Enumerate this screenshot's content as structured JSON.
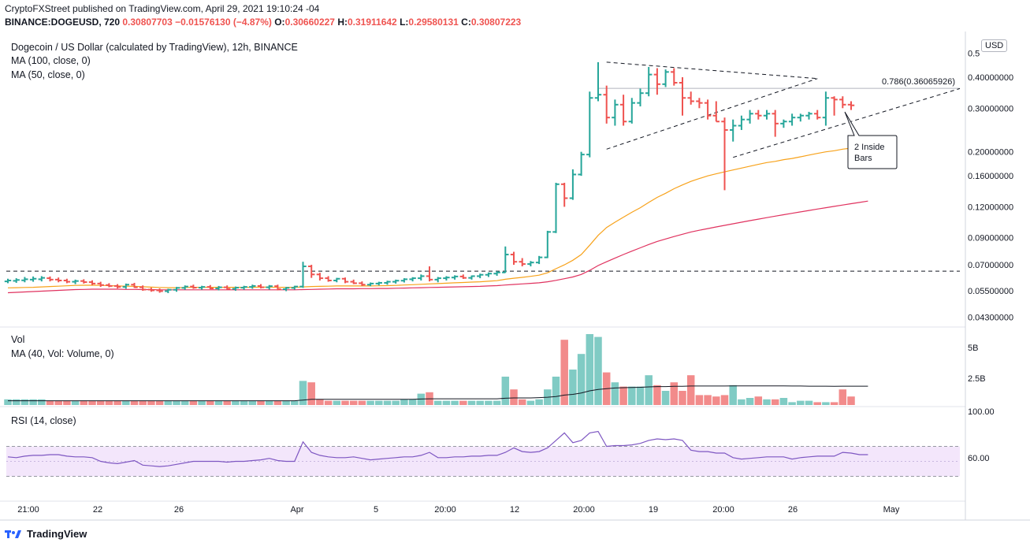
{
  "header": {
    "line1": "CryptoFXStreet published on TradingView.com, April 29, 2021 19:10:24 -04",
    "symbol": "BINANCE:DOGEUSD, 720",
    "change": "0.30807703 −0.01576130 (−4.87%)",
    "o_label": "O:",
    "o": "0.30660227",
    "h_label": "H:",
    "h": "0.31911642",
    "l_label": "L:",
    "l": "0.29580131",
    "c_label": "C:",
    "c": "0.30807223"
  },
  "legends": {
    "title": "Dogecoin / US Dollar (calculated by TradingView), 12h, BINANCE",
    "ma100": "MA (100, close, 0)",
    "ma50": "MA (50, close, 0)",
    "vol": "Vol",
    "vol_ma": "MA (40, Vol: Volume, 0)",
    "rsi": "RSI (14, close)"
  },
  "currency": "USD",
  "footer": "TradingView",
  "colors": {
    "up": "#26a69a",
    "down": "#ef5350",
    "ma50": "#f7a21b",
    "ma100": "#e0325f",
    "rsi": "#7e57c2",
    "rsi_band": "#f3e6fb"
  },
  "chart_data": {
    "type": "bar",
    "price_axis_ticks": [
      "0.5",
      "0.40000000",
      "0.30000000",
      "0.20000000",
      "0.16000000",
      "0.12000000",
      "0.09000000",
      "0.07000000",
      "0.05500000",
      "0.04300000"
    ],
    "volume_axis_ticks": [
      "5B",
      "2.5B"
    ],
    "rsi_axis_ticks": [
      "100.00",
      "60.00"
    ],
    "x_ticks": [
      "21:00",
      "22",
      "26",
      "Apr",
      "5",
      "20:00",
      "12",
      "20:00",
      "19",
      "20:00",
      "26",
      "May"
    ],
    "annotations": {
      "fib": "0.786(0.36065926)",
      "inside_bars_line1": "2 Inside",
      "inside_bars_line2": "Bars"
    },
    "horizontal_level": 0.066,
    "fib_level": 0.36066,
    "ohlc": [
      [
        0.06,
        0.0615,
        0.059,
        0.0605
      ],
      [
        0.0603,
        0.0618,
        0.0592,
        0.0608
      ],
      [
        0.0606,
        0.0625,
        0.0595,
        0.0612
      ],
      [
        0.061,
        0.0628,
        0.0598,
        0.0615
      ],
      [
        0.0612,
        0.063,
        0.06,
        0.062
      ],
      [
        0.0618,
        0.0628,
        0.06,
        0.061
      ],
      [
        0.061,
        0.0622,
        0.0595,
        0.0605
      ],
      [
        0.0605,
        0.0615,
        0.059,
        0.0598
      ],
      [
        0.0598,
        0.061,
        0.0585,
        0.0602
      ],
      [
        0.0602,
        0.0612,
        0.0588,
        0.0596
      ],
      [
        0.0596,
        0.0606,
        0.058,
        0.0588
      ],
      [
        0.0588,
        0.0598,
        0.057,
        0.058
      ],
      [
        0.058,
        0.059,
        0.0568,
        0.0575
      ],
      [
        0.0575,
        0.0585,
        0.0562,
        0.057
      ],
      [
        0.057,
        0.0588,
        0.056,
        0.0582
      ],
      [
        0.0582,
        0.0592,
        0.0565,
        0.0568
      ],
      [
        0.0568,
        0.0578,
        0.055,
        0.0556
      ],
      [
        0.0556,
        0.0566,
        0.0545,
        0.0552
      ],
      [
        0.0552,
        0.0562,
        0.054,
        0.0548
      ],
      [
        0.0548,
        0.056,
        0.0538,
        0.0555
      ],
      [
        0.0555,
        0.057,
        0.0545,
        0.0565
      ],
      [
        0.0565,
        0.0578,
        0.0555,
        0.0572
      ],
      [
        0.0572,
        0.0582,
        0.056,
        0.0566
      ],
      [
        0.0566,
        0.0576,
        0.0555,
        0.057
      ],
      [
        0.057,
        0.058,
        0.0558,
        0.0562
      ],
      [
        0.0562,
        0.0575,
        0.0552,
        0.0568
      ],
      [
        0.0568,
        0.0578,
        0.0556,
        0.056
      ],
      [
        0.056,
        0.0572,
        0.055,
        0.0566
      ],
      [
        0.0566,
        0.0576,
        0.0555,
        0.057
      ],
      [
        0.057,
        0.0582,
        0.056,
        0.0575
      ],
      [
        0.0575,
        0.0585,
        0.0562,
        0.0568
      ],
      [
        0.0568,
        0.058,
        0.0556,
        0.0574
      ],
      [
        0.0574,
        0.0582,
        0.0552,
        0.0558
      ],
      [
        0.0558,
        0.057,
        0.0548,
        0.0565
      ],
      [
        0.0565,
        0.0576,
        0.0556,
        0.0572
      ],
      [
        0.0572,
        0.072,
        0.0565,
        0.069
      ],
      [
        0.069,
        0.07,
        0.062,
        0.064
      ],
      [
        0.064,
        0.065,
        0.0605,
        0.0618
      ],
      [
        0.0618,
        0.063,
        0.0598,
        0.0605
      ],
      [
        0.0605,
        0.062,
        0.0595,
        0.0615
      ],
      [
        0.0615,
        0.0622,
        0.059,
        0.0598
      ],
      [
        0.0598,
        0.061,
        0.0585,
        0.059
      ],
      [
        0.059,
        0.06,
        0.0575,
        0.0582
      ],
      [
        0.0582,
        0.0594,
        0.0574,
        0.0588
      ],
      [
        0.0588,
        0.0598,
        0.0578,
        0.0592
      ],
      [
        0.0592,
        0.0604,
        0.0582,
        0.0598
      ],
      [
        0.0598,
        0.061,
        0.0588,
        0.0604
      ],
      [
        0.0604,
        0.0618,
        0.0594,
        0.0612
      ],
      [
        0.0612,
        0.0624,
        0.06,
        0.0618
      ],
      [
        0.0618,
        0.064,
        0.0605,
        0.063
      ],
      [
        0.063,
        0.069,
        0.06,
        0.061
      ],
      [
        0.061,
        0.0625,
        0.0595,
        0.0618
      ],
      [
        0.0618,
        0.063,
        0.0605,
        0.0622
      ],
      [
        0.0622,
        0.0635,
        0.061,
        0.0628
      ],
      [
        0.0628,
        0.064,
        0.0614,
        0.062
      ],
      [
        0.062,
        0.0634,
        0.061,
        0.063
      ],
      [
        0.063,
        0.0645,
        0.0618,
        0.0638
      ],
      [
        0.0638,
        0.0652,
        0.0625,
        0.0645
      ],
      [
        0.0645,
        0.066,
        0.0632,
        0.0652
      ],
      [
        0.0652,
        0.083,
        0.065,
        0.077
      ],
      [
        0.077,
        0.079,
        0.07,
        0.072
      ],
      [
        0.072,
        0.0745,
        0.069,
        0.0705
      ],
      [
        0.0705,
        0.0725,
        0.069,
        0.0715
      ],
      [
        0.0715,
        0.076,
        0.0705,
        0.075
      ],
      [
        0.075,
        0.096,
        0.0745,
        0.095
      ],
      [
        0.095,
        0.15,
        0.094,
        0.148
      ],
      [
        0.148,
        0.15,
        0.12,
        0.13
      ],
      [
        0.13,
        0.17,
        0.128,
        0.162
      ],
      [
        0.162,
        0.2,
        0.16,
        0.195
      ],
      [
        0.195,
        0.35,
        0.19,
        0.33
      ],
      [
        0.33,
        0.46,
        0.32,
        0.34
      ],
      [
        0.34,
        0.37,
        0.26,
        0.275
      ],
      [
        0.275,
        0.325,
        0.255,
        0.31
      ],
      [
        0.31,
        0.34,
        0.255,
        0.265
      ],
      [
        0.265,
        0.33,
        0.26,
        0.315
      ],
      [
        0.315,
        0.36,
        0.305,
        0.345
      ],
      [
        0.345,
        0.44,
        0.335,
        0.41
      ],
      [
        0.41,
        0.435,
        0.34,
        0.375
      ],
      [
        0.375,
        0.43,
        0.365,
        0.42
      ],
      [
        0.42,
        0.435,
        0.37,
        0.38
      ],
      [
        0.38,
        0.4,
        0.28,
        0.33
      ],
      [
        0.33,
        0.35,
        0.31,
        0.32
      ],
      [
        0.32,
        0.33,
        0.3,
        0.315
      ],
      [
        0.315,
        0.325,
        0.27,
        0.28
      ],
      [
        0.28,
        0.32,
        0.265,
        0.265
      ],
      [
        0.265,
        0.275,
        0.14,
        0.245
      ],
      [
        0.245,
        0.27,
        0.22,
        0.255
      ],
      [
        0.255,
        0.28,
        0.245,
        0.27
      ],
      [
        0.27,
        0.295,
        0.26,
        0.285
      ],
      [
        0.285,
        0.295,
        0.27,
        0.28
      ],
      [
        0.28,
        0.295,
        0.27,
        0.285
      ],
      [
        0.285,
        0.295,
        0.23,
        0.26
      ],
      [
        0.26,
        0.27,
        0.25,
        0.265
      ],
      [
        0.265,
        0.285,
        0.255,
        0.275
      ],
      [
        0.275,
        0.285,
        0.265,
        0.28
      ],
      [
        0.28,
        0.29,
        0.27,
        0.285
      ],
      [
        0.285,
        0.295,
        0.27,
        0.275
      ],
      [
        0.275,
        0.35,
        0.255,
        0.33
      ],
      [
        0.33,
        0.335,
        0.28,
        0.325
      ],
      [
        0.325,
        0.335,
        0.3,
        0.31
      ],
      [
        0.31,
        0.32,
        0.295,
        0.308
      ]
    ],
    "ma50": [
      0.0565,
      0.0566,
      0.0567,
      0.0568,
      0.057,
      0.0572,
      0.0574,
      0.0576,
      0.0578,
      0.0579,
      0.0579,
      0.0578,
      0.0577,
      0.0575,
      0.0574,
      0.0573,
      0.0571,
      0.0569,
      0.0567,
      0.0566,
      0.0566,
      0.0567,
      0.0568,
      0.0568,
      0.0568,
      0.0568,
      0.0568,
      0.0568,
      0.0568,
      0.0568,
      0.0569,
      0.0569,
      0.0568,
      0.0568,
      0.0568,
      0.057,
      0.0572,
      0.0573,
      0.0574,
      0.0575,
      0.0575,
      0.0575,
      0.0575,
      0.0575,
      0.0576,
      0.0577,
      0.0578,
      0.058,
      0.0582,
      0.0584,
      0.0586,
      0.0588,
      0.059,
      0.0592,
      0.0594,
      0.0596,
      0.0598,
      0.0601,
      0.0604,
      0.0612,
      0.0618,
      0.0623,
      0.0629,
      0.0636,
      0.065,
      0.0675,
      0.07,
      0.073,
      0.077,
      0.084,
      0.092,
      0.099,
      0.104,
      0.109,
      0.114,
      0.119,
      0.125,
      0.131,
      0.136,
      0.142,
      0.147,
      0.152,
      0.156,
      0.16,
      0.163,
      0.166,
      0.169,
      0.172,
      0.175,
      0.178,
      0.181,
      0.183,
      0.186,
      0.188,
      0.191,
      0.194,
      0.197,
      0.2,
      0.202,
      0.205,
      0.207,
      0.209,
      0.211
    ],
    "ma100": [
      0.054,
      0.0542,
      0.0544,
      0.0546,
      0.0548,
      0.055,
      0.0552,
      0.0554,
      0.0556,
      0.0557,
      0.0558,
      0.0558,
      0.0558,
      0.0558,
      0.0557,
      0.0557,
      0.0556,
      0.0556,
      0.0555,
      0.0555,
      0.0555,
      0.0555,
      0.0555,
      0.0555,
      0.0555,
      0.0555,
      0.0555,
      0.0555,
      0.0555,
      0.0555,
      0.0555,
      0.0555,
      0.0555,
      0.0555,
      0.0555,
      0.0556,
      0.0557,
      0.0558,
      0.0559,
      0.056,
      0.056,
      0.056,
      0.0561,
      0.0561,
      0.0562,
      0.0562,
      0.0563,
      0.0564,
      0.0565,
      0.0566,
      0.0567,
      0.0568,
      0.0569,
      0.057,
      0.0571,
      0.0572,
      0.0573,
      0.0575,
      0.0577,
      0.058,
      0.0583,
      0.0586,
      0.0589,
      0.0592,
      0.0598,
      0.0606,
      0.0615,
      0.0625,
      0.064,
      0.0665,
      0.0695,
      0.072,
      0.0745,
      0.077,
      0.0795,
      0.082,
      0.0845,
      0.087,
      0.089,
      0.091,
      0.093,
      0.095,
      0.0965,
      0.098,
      0.0995,
      0.101,
      0.1025,
      0.104,
      0.1055,
      0.107,
      0.1085,
      0.11,
      0.1115,
      0.113,
      0.1145,
      0.116,
      0.1175,
      0.119,
      0.1205,
      0.122,
      0.1235,
      0.125,
      0.1265
    ],
    "volume_billion": [
      0.4,
      0.4,
      0.4,
      0.4,
      0.4,
      0.3,
      0.3,
      0.3,
      0.3,
      0.3,
      0.3,
      0.3,
      0.3,
      0.3,
      0.3,
      0.3,
      0.3,
      0.3,
      0.3,
      0.3,
      0.3,
      0.3,
      0.3,
      0.3,
      0.3,
      0.3,
      0.3,
      0.3,
      0.3,
      0.3,
      0.3,
      0.3,
      0.3,
      0.3,
      0.3,
      1.7,
      1.6,
      0.4,
      0.3,
      0.3,
      0.3,
      0.3,
      0.3,
      0.3,
      0.3,
      0.3,
      0.3,
      0.4,
      0.4,
      0.8,
      0.9,
      0.3,
      0.3,
      0.3,
      0.3,
      0.3,
      0.3,
      0.3,
      0.3,
      2.0,
      1.1,
      0.4,
      0.3,
      0.4,
      1.1,
      2.0,
      4.6,
      2.5,
      3.6,
      5.0,
      4.8,
      2.3,
      1.6,
      1.3,
      1.3,
      1.3,
      2.1,
      1.4,
      1.0,
      1.6,
      1.0,
      2.1,
      0.7,
      0.7,
      0.6,
      0.7,
      1.4,
      0.4,
      0.5,
      0.6,
      0.4,
      0.4,
      0.5,
      0.2,
      0.3,
      0.3,
      0.2,
      0.2,
      0.2,
      1.1,
      0.6,
      0.3,
      0.3
    ],
    "volume_ma_billion": [
      0.3,
      0.3,
      0.3,
      0.3,
      0.3,
      0.3,
      0.3,
      0.3,
      0.3,
      0.3,
      0.3,
      0.3,
      0.3,
      0.3,
      0.3,
      0.3,
      0.3,
      0.3,
      0.3,
      0.3,
      0.3,
      0.3,
      0.3,
      0.3,
      0.3,
      0.3,
      0.3,
      0.3,
      0.3,
      0.3,
      0.3,
      0.3,
      0.3,
      0.3,
      0.3,
      0.35,
      0.4,
      0.4,
      0.4,
      0.4,
      0.4,
      0.4,
      0.4,
      0.4,
      0.4,
      0.4,
      0.4,
      0.4,
      0.4,
      0.42,
      0.44,
      0.44,
      0.44,
      0.44,
      0.44,
      0.44,
      0.44,
      0.44,
      0.44,
      0.48,
      0.5,
      0.5,
      0.5,
      0.52,
      0.55,
      0.6,
      0.7,
      0.75,
      0.85,
      1.0,
      1.1,
      1.15,
      1.2,
      1.22,
      1.24,
      1.25,
      1.28,
      1.3,
      1.3,
      1.32,
      1.32,
      1.34,
      1.34,
      1.34,
      1.34,
      1.34,
      1.35,
      1.35,
      1.35,
      1.35,
      1.35,
      1.35,
      1.35,
      1.34,
      1.34,
      1.33,
      1.33,
      1.33,
      1.32,
      1.33,
      1.33,
      1.33,
      1.33
    ],
    "rsi": [
      56,
      55,
      57,
      58,
      58,
      59,
      59,
      57,
      56,
      56,
      55,
      50,
      48,
      47,
      49,
      51,
      45,
      44,
      43,
      44,
      46,
      48,
      50,
      50,
      50,
      50,
      49,
      50,
      50,
      51,
      52,
      54,
      51,
      50,
      50,
      76,
      62,
      58,
      56,
      55,
      55,
      56,
      54,
      52,
      53,
      54,
      55,
      56,
      56,
      58,
      62,
      55,
      55,
      56,
      56,
      57,
      57,
      58,
      58,
      62,
      68,
      63,
      62,
      63,
      68,
      78,
      88,
      75,
      78,
      88,
      90,
      70,
      71,
      71,
      72,
      74,
      78,
      80,
      79,
      80,
      78,
      65,
      63,
      63,
      61,
      61,
      55,
      53,
      54,
      55,
      56,
      56,
      56,
      53,
      55,
      56,
      57,
      57,
      57,
      62,
      61,
      59,
      59
    ]
  }
}
